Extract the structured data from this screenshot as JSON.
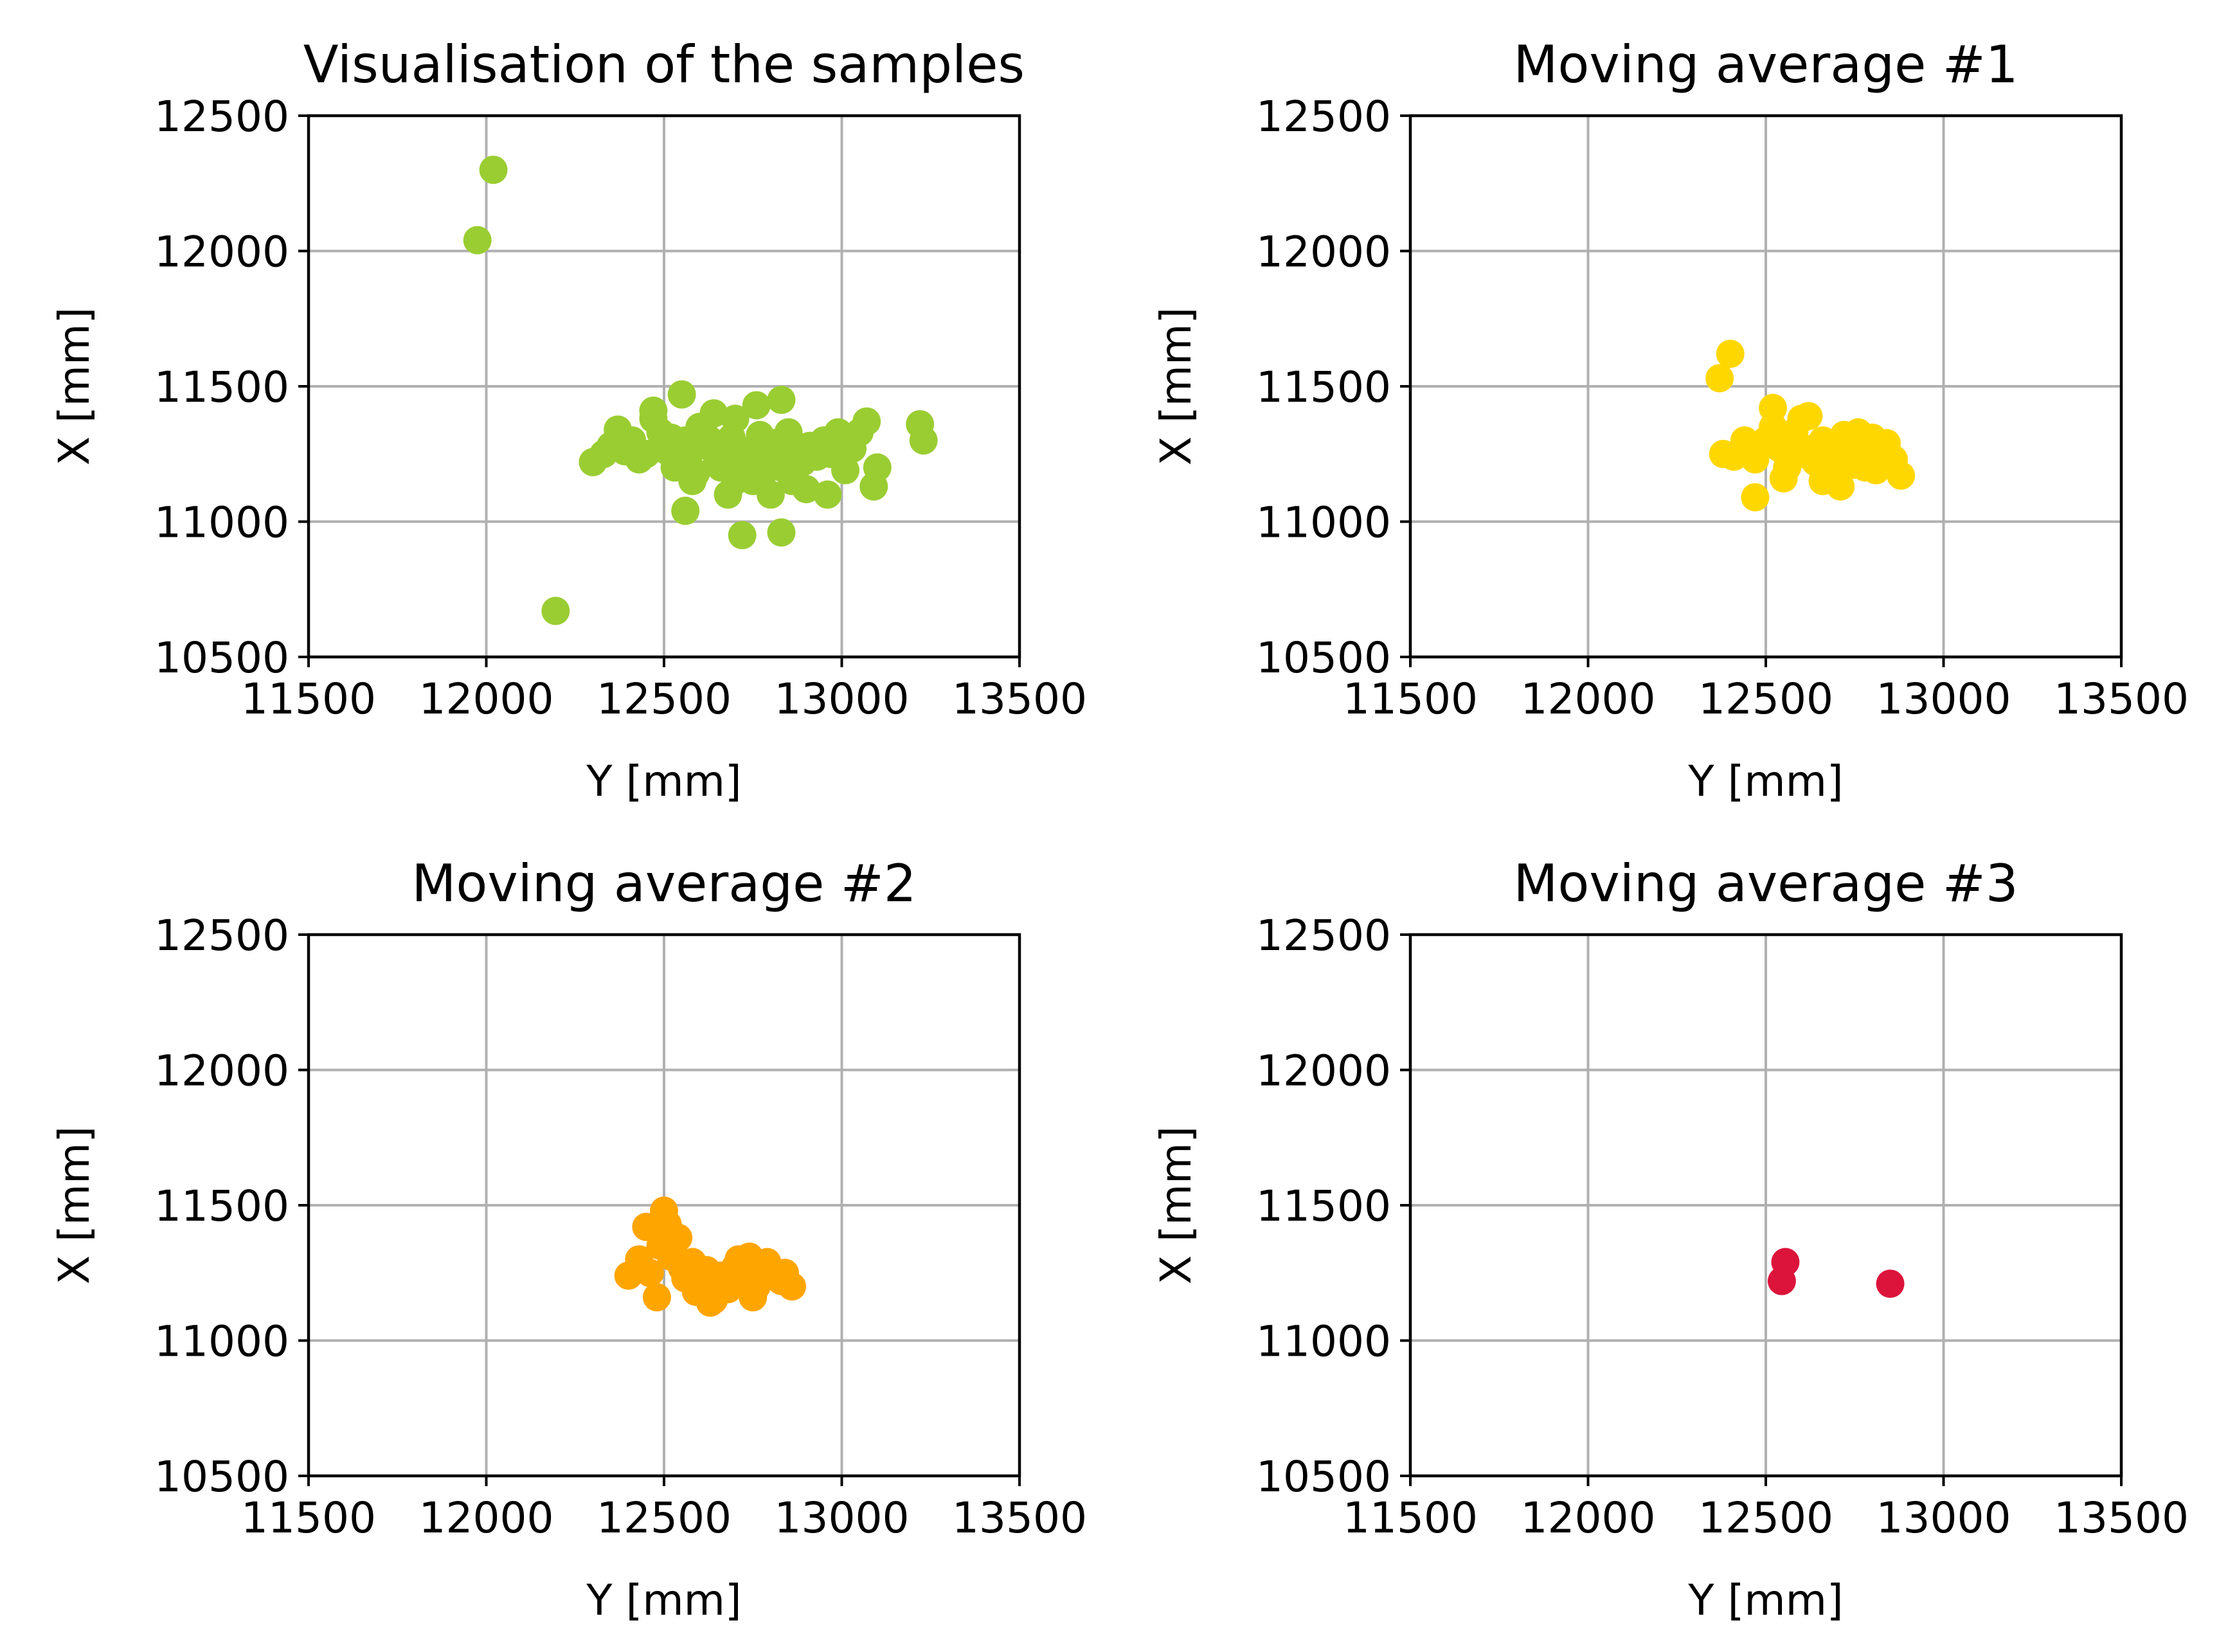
{
  "chart_data": [
    {
      "type": "scatter",
      "title": "Visualisation of the samples",
      "xlabel": "Y [mm]",
      "ylabel": "X [mm]",
      "xlim": [
        11500,
        13500
      ],
      "ylim": [
        10500,
        12500
      ],
      "xticks": [
        "11500",
        "12000",
        "12500",
        "13000",
        "13500"
      ],
      "yticks": [
        "10500",
        "11000",
        "11500",
        "12000",
        "12500"
      ],
      "grid": true,
      "color": "#9acd32",
      "series": [
        {
          "name": "samples",
          "x": [
            12020,
            11975,
            12195,
            12720,
            12830,
            12300,
            12330,
            12350,
            12370,
            12390,
            12410,
            12430,
            12450,
            12470,
            12490,
            12510,
            12530,
            12550,
            12570,
            12590,
            12610,
            12630,
            12650,
            12670,
            12690,
            12710,
            12730,
            12750,
            12770,
            12790,
            12810,
            12830,
            12850,
            12870,
            12890,
            12910,
            12930,
            12950,
            12970,
            12990,
            13010,
            13030,
            13050,
            13070,
            13090,
            13100,
            13220,
            13230,
            12470,
            12560,
            12580,
            12640,
            12680,
            12700,
            12760,
            12780,
            12800,
            12830,
            12560,
            12600,
            12660,
            12700,
            12750,
            12520,
            12620,
            12680,
            12740,
            12860,
            12900,
            12960
          ],
          "y": [
            12300,
            12040,
            10670,
            10950,
            10960,
            11220,
            11250,
            11280,
            11340,
            11260,
            11300,
            11230,
            11250,
            11410,
            11330,
            11260,
            11200,
            11470,
            11250,
            11180,
            11350,
            11300,
            11230,
            11270,
            11310,
            11190,
            11260,
            11230,
            11320,
            11250,
            11290,
            11200,
            11330,
            11260,
            11220,
            11280,
            11240,
            11300,
            11250,
            11330,
            11190,
            11270,
            11330,
            11370,
            11130,
            11200,
            11360,
            11300,
            11380,
            11040,
            11150,
            11400,
            11100,
            11150,
            11430,
            11180,
            11100,
            11450,
            11300,
            11350,
            11200,
            11380,
            11150,
            11310,
            11280,
            11240,
            11200,
            11150,
            11120,
            11100
          ]
        }
      ]
    },
    {
      "type": "scatter",
      "title": "Moving average #1",
      "xlabel": "Y [mm]",
      "ylabel": "X [mm]",
      "xlim": [
        11500,
        13500
      ],
      "ylim": [
        10500,
        12500
      ],
      "xticks": [
        "11500",
        "12000",
        "12500",
        "13000",
        "13500"
      ],
      "yticks": [
        "10500",
        "11000",
        "11500",
        "12000",
        "12500"
      ],
      "grid": true,
      "color": "#ffd700",
      "series": [
        {
          "name": "moving average #1",
          "x": [
            12400,
            12370,
            12470,
            12380,
            12410,
            12440,
            12470,
            12500,
            12520,
            12540,
            12560,
            12580,
            12600,
            12620,
            12640,
            12660,
            12680,
            12700,
            12720,
            12740,
            12760,
            12780,
            12800,
            12820,
            12840,
            12860,
            12880,
            12520,
            12560,
            12610,
            12660,
            12710,
            12760,
            12810,
            12550,
            12600,
            12650,
            12700,
            12750,
            12800
          ],
          "y": [
            11620,
            11530,
            11090,
            11250,
            11240,
            11300,
            11230,
            11300,
            11420,
            11270,
            11200,
            11330,
            11250,
            11390,
            11220,
            11300,
            11180,
            11260,
            11320,
            11230,
            11280,
            11200,
            11310,
            11250,
            11290,
            11230,
            11170,
            11350,
            11310,
            11270,
            11150,
            11130,
            11330,
            11190,
            11160,
            11380,
            11240,
            11290,
            11210,
            11300
          ]
        }
      ]
    },
    {
      "type": "scatter",
      "title": "Moving average #2",
      "xlabel": "Y [mm]",
      "ylabel": "X [mm]",
      "xlim": [
        11500,
        13500
      ],
      "ylim": [
        10500,
        12500
      ],
      "xticks": [
        "11500",
        "12000",
        "12500",
        "13000",
        "13500"
      ],
      "yticks": [
        "10500",
        "11000",
        "11500",
        "12000",
        "12500"
      ],
      "grid": true,
      "color": "#ffa500",
      "series": [
        {
          "name": "moving average #2",
          "x": [
            12500,
            12450,
            12400,
            12430,
            12460,
            12490,
            12480,
            12520,
            12540,
            12560,
            12580,
            12600,
            12620,
            12640,
            12660,
            12680,
            12700,
            12720,
            12740,
            12760,
            12780,
            12800,
            12820,
            12840,
            12860,
            12510,
            12550,
            12590,
            12630,
            12670,
            12710,
            12750,
            12790,
            12830
          ],
          "y": [
            11480,
            11420,
            11240,
            11300,
            11250,
            11350,
            11160,
            11310,
            11380,
            11230,
            11290,
            11200,
            11260,
            11150,
            11240,
            11190,
            11270,
            11230,
            11310,
            11200,
            11280,
            11240,
            11230,
            11250,
            11200,
            11430,
            11270,
            11180,
            11140,
            11220,
            11300,
            11160,
            11290,
            11220
          ]
        }
      ]
    },
    {
      "type": "scatter",
      "title": "Moving average #3",
      "xlabel": "Y [mm]",
      "ylabel": "X [mm]",
      "xlim": [
        11500,
        13500
      ],
      "ylim": [
        10500,
        12500
      ],
      "xticks": [
        "11500",
        "12000",
        "12500",
        "13000",
        "13500"
      ],
      "yticks": [
        "10500",
        "11000",
        "11500",
        "12000",
        "12500"
      ],
      "grid": true,
      "color": "#dc143c",
      "series": [
        {
          "name": "moving average #3",
          "x": [
            12555,
            12545,
            12850
          ],
          "y": [
            11290,
            11220,
            11210
          ]
        }
      ]
    }
  ]
}
